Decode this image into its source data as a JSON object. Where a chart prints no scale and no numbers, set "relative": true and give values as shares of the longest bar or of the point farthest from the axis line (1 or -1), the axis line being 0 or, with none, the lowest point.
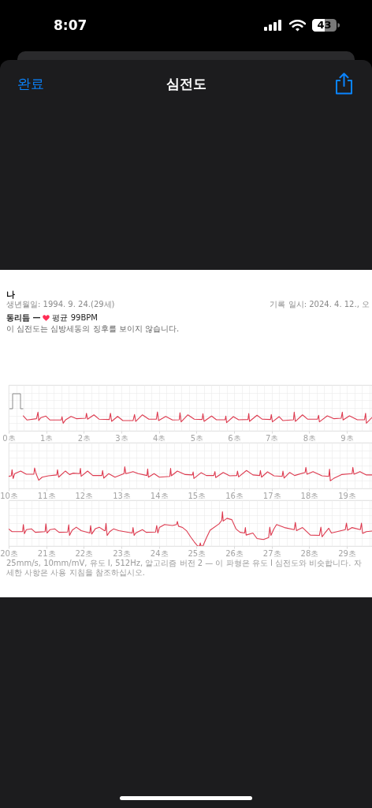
{
  "chart_data": [
    {
      "type": "other",
      "title": "심전도",
      "annotations": [
        "8:07",
        "43",
        "완료",
        "나",
        "생년월일: 1994. 9. 24.(29세)",
        "기록 일시: 2024. 4. 12., 오",
        "동리듬 —",
        "평균 99BPM",
        "이 심전도는 심방세동의 징후를 보이지 않습니다."
      ]
    },
    {
      "type": "line",
      "relative": true,
      "grid": true,
      "xlim": [
        0,
        9.67
      ],
      "xticks": [
        {
          "value": 0,
          "label": "0초"
        },
        {
          "value": 0.2,
          "label": null
        },
        {
          "value": 0.4,
          "label": null
        },
        {
          "value": 0.6,
          "label": null
        },
        {
          "value": 0.8,
          "label": null
        },
        {
          "value": 1,
          "label": "1초"
        },
        {
          "value": 1.2,
          "label": null
        },
        {
          "value": 1.4,
          "label": null
        },
        {
          "value": 1.6,
          "label": null
        },
        {
          "value": 1.8,
          "label": null
        },
        {
          "value": 2,
          "label": "2초"
        },
        {
          "value": 2.2,
          "label": null
        },
        {
          "value": 2.4,
          "label": null
        },
        {
          "value": 2.6,
          "label": null
        },
        {
          "value": 2.8,
          "label": null
        },
        {
          "value": 3,
          "label": "3초"
        },
        {
          "value": 3.2,
          "label": null
        },
        {
          "value": 3.4,
          "label": null
        },
        {
          "value": 3.6,
          "label": null
        },
        {
          "value": 3.8,
          "label": null
        },
        {
          "value": 4,
          "label": "4초"
        },
        {
          "value": 4.2,
          "label": null
        },
        {
          "value": 4.4,
          "label": null
        },
        {
          "value": 4.6,
          "label": null
        },
        {
          "value": 4.8,
          "label": null
        },
        {
          "value": 5,
          "label": "5초"
        },
        {
          "value": 5.2,
          "label": null
        },
        {
          "value": 5.4,
          "label": null
        },
        {
          "value": 5.6,
          "label": null
        },
        {
          "value": 5.8,
          "label": null
        },
        {
          "value": 6,
          "label": "6초"
        },
        {
          "value": 6.2,
          "label": null
        },
        {
          "value": 6.4,
          "label": null
        },
        {
          "value": 6.6,
          "label": null
        },
        {
          "value": 6.8,
          "label": null
        },
        {
          "value": 7,
          "label": "7초"
        },
        {
          "value": 7.2,
          "label": null
        },
        {
          "value": 7.4,
          "label": null
        },
        {
          "value": 7.6,
          "label": null
        },
        {
          "value": 7.8,
          "label": null
        },
        {
          "value": 8,
          "label": "8초"
        },
        {
          "value": 8.2,
          "label": null
        },
        {
          "value": 8.4,
          "label": null
        },
        {
          "value": 8.6,
          "label": null
        },
        {
          "value": 8.8,
          "label": null
        },
        {
          "value": 9,
          "label": "9초"
        },
        {
          "value": 9.2,
          "label": null
        },
        {
          "value": 9.4,
          "label": null
        },
        {
          "value": 9.6,
          "label": null
        }
      ],
      "x": [
        0.39,
        0.49,
        0.74,
        0.78,
        0.8,
        0.85,
        0.99,
        1.1,
        1.4,
        1.42,
        1.45,
        1.51,
        1.66,
        1.8,
        2.05,
        2.07,
        2.1,
        2.27,
        2.41,
        2.68,
        2.71,
        2.74,
        2.9,
        3.04,
        3.31,
        3.35,
        3.38,
        3.56,
        3.73,
        3.93,
        3.96,
        3.99,
        4.18,
        4.36,
        4.54,
        4.56,
        4.59,
        4.77,
        4.94,
        5.15,
        5.17,
        5.2,
        5.4,
        5.53,
        5.76,
        5.78,
        5.8,
        5.98,
        6.12,
        6.37,
        6.39,
        6.41,
        6.61,
        6.75,
        6.97,
        6.99,
        7.02,
        7.2,
        7.3,
        7.58,
        7.6,
        7.63,
        7.82,
        7.96,
        8.22,
        8.25,
        8.27,
        8.48,
        8.65,
        8.85,
        8.88,
        8.9,
        9.07,
        9.28,
        9.47,
        9.5,
        9.52,
        9.67
      ],
      "series": [
        {
          "color": "#dd3a4f",
          "values": [
            0.65,
            0.28,
            0.4,
            0.98,
            0.23,
            0.47,
            0.63,
            0.28,
            0.28,
            0.58,
            0,
            0.28,
            0.6,
            0.4,
            0.44,
            0.88,
            0.35,
            0.74,
            0.35,
            0.33,
            0.88,
            0.16,
            0.6,
            0.23,
            0.23,
            0.77,
            0.16,
            0.74,
            0.35,
            0.35,
            1,
            0.23,
            0.6,
            0.28,
            0.3,
            0.93,
            0.12,
            0.74,
            0.35,
            0.33,
            0.84,
            0.16,
            0.63,
            0.3,
            0.3,
            0.63,
            0.05,
            0.58,
            0.3,
            0.33,
            0.86,
            0.16,
            0.7,
            0.35,
            0.33,
            0.77,
            0.12,
            0.58,
            0.23,
            0.3,
            0.98,
            0.16,
            0.74,
            0.35,
            0.35,
            0.7,
            0.12,
            0.65,
            0.4,
            0.44,
            0.98,
            0.28,
            0.65,
            0.3,
            0.3,
            0.88,
            0,
            0.51
          ]
        }
      ]
    },
    {
      "type": "line",
      "relative": true,
      "grid": true,
      "xlim": [
        10,
        19.67
      ],
      "xticks": [
        {
          "value": 10,
          "label": "10초"
        },
        {
          "value": 10.2,
          "label": null
        },
        {
          "value": 10.4,
          "label": null
        },
        {
          "value": 10.6,
          "label": null
        },
        {
          "value": 10.8,
          "label": null
        },
        {
          "value": 11,
          "label": "11초"
        },
        {
          "value": 11.2,
          "label": null
        },
        {
          "value": 11.4,
          "label": null
        },
        {
          "value": 11.6,
          "label": null
        },
        {
          "value": 11.8,
          "label": null
        },
        {
          "value": 12,
          "label": "12초"
        },
        {
          "value": 12.2,
          "label": null
        },
        {
          "value": 12.4,
          "label": null
        },
        {
          "value": 12.6,
          "label": null
        },
        {
          "value": 12.8,
          "label": null
        },
        {
          "value": 13,
          "label": "13초"
        },
        {
          "value": 13.2,
          "label": null
        },
        {
          "value": 13.4,
          "label": null
        },
        {
          "value": 13.6,
          "label": null
        },
        {
          "value": 13.8,
          "label": null
        },
        {
          "value": 14,
          "label": "14초"
        },
        {
          "value": 14.2,
          "label": null
        },
        {
          "value": 14.4,
          "label": null
        },
        {
          "value": 14.6,
          "label": null
        },
        {
          "value": 14.8,
          "label": null
        },
        {
          "value": 15,
          "label": "15초"
        },
        {
          "value": 15.2,
          "label": null
        },
        {
          "value": 15.4,
          "label": null
        },
        {
          "value": 15.6,
          "label": null
        },
        {
          "value": 15.8,
          "label": null
        },
        {
          "value": 16,
          "label": "16초"
        },
        {
          "value": 16.2,
          "label": null
        },
        {
          "value": 16.4,
          "label": null
        },
        {
          "value": 16.6,
          "label": null
        },
        {
          "value": 16.8,
          "label": null
        },
        {
          "value": 17,
          "label": "17초"
        },
        {
          "value": 17.2,
          "label": null
        },
        {
          "value": 17.4,
          "label": null
        },
        {
          "value": 17.6,
          "label": null
        },
        {
          "value": 17.8,
          "label": null
        },
        {
          "value": 18,
          "label": "18초"
        },
        {
          "value": 18.2,
          "label": null
        },
        {
          "value": 18.4,
          "label": null
        },
        {
          "value": 18.6,
          "label": null
        },
        {
          "value": 18.8,
          "label": null
        },
        {
          "value": 19,
          "label": "19초"
        },
        {
          "value": 19.2,
          "label": null
        },
        {
          "value": 19.4,
          "label": null
        },
        {
          "value": 19.6,
          "label": null
        }
      ],
      "x": [
        10,
        10.07,
        10.09,
        10.12,
        10.16,
        10.32,
        10.47,
        10.67,
        10.69,
        10.73,
        10.8,
        10.89,
        11.06,
        11.28,
        11.3,
        11.33,
        11.51,
        11.62,
        11.72,
        11.89,
        11.91,
        11.93,
        12.1,
        12.24,
        12.48,
        12.5,
        12.53,
        12.66,
        12.83,
        13.07,
        13.09,
        13.12,
        13.31,
        13.45,
        13.68,
        13.7,
        13.72,
        13.87,
        14.01,
        14.29,
        14.31,
        14.33,
        14.49,
        14.7,
        14.89,
        14.91,
        14.93,
        15.12,
        15.26,
        15.46,
        15.49,
        15.51,
        15.71,
        15.88,
        16.07,
        16.09,
        16.12,
        16.33,
        16.5,
        16.68,
        16.7,
        16.73,
        16.89,
        17.06,
        17.28,
        17.3,
        17.33,
        17.48,
        17.61,
        17.89,
        17.91,
        17.94,
        18.1,
        18.34,
        18.52,
        18.54,
        18.56,
        18.65,
        18.86,
        19.14,
        19.16,
        19.19,
        19.35,
        19.52,
        19.67
      ],
      "series": [
        {
          "color": "#dd3a4f",
          "values": [
            0.32,
            0.36,
            0.79,
            0.17,
            0.51,
            0.7,
            0.47,
            0.47,
            0.92,
            0.51,
            0.04,
            0.26,
            0.36,
            0.42,
            0.79,
            0.26,
            0.7,
            0.45,
            0.55,
            0.51,
            0.89,
            0.32,
            0.7,
            0.38,
            0.38,
            0.74,
            0.19,
            0.51,
            0.26,
            0.51,
            1,
            0.51,
            0.66,
            0.51,
            0.38,
            0.85,
            0.26,
            0.51,
            0.26,
            0.32,
            0.89,
            0.36,
            0.7,
            0.45,
            0.42,
            0.64,
            0.17,
            0.58,
            0.38,
            0.38,
            0.66,
            0.23,
            0.6,
            0.36,
            0.38,
            0.7,
            0.28,
            0.74,
            0.42,
            0.38,
            0.74,
            0.26,
            0.64,
            0.36,
            0.32,
            0.7,
            0.19,
            0.6,
            0.38,
            0.6,
            0.96,
            0.47,
            0.66,
            0.36,
            0.32,
            0.83,
            0,
            0.17,
            0.45,
            0.51,
            0.96,
            0.47,
            0.66,
            0.42,
            0.42
          ]
        }
      ]
    },
    {
      "type": "line",
      "relative": true,
      "grid": true,
      "annotations": [
        "25mm/s, 10mm/mV, 유도 I, 512Hz, 알고리즘 버전 2 — 이 파형은 유도 I 심전도와 비슷합니다. 자세한 사항은 사용 지침을 참조하십시오."
      ],
      "xlim": [
        20,
        29.67
      ],
      "xticks": [
        {
          "value": 20,
          "label": "20초"
        },
        {
          "value": 20.2,
          "label": null
        },
        {
          "value": 20.4,
          "label": null
        },
        {
          "value": 20.6,
          "label": null
        },
        {
          "value": 20.8,
          "label": null
        },
        {
          "value": 21,
          "label": "21초"
        },
        {
          "value": 21.2,
          "label": null
        },
        {
          "value": 21.4,
          "label": null
        },
        {
          "value": 21.6,
          "label": null
        },
        {
          "value": 21.8,
          "label": null
        },
        {
          "value": 22,
          "label": "22초"
        },
        {
          "value": 22.2,
          "label": null
        },
        {
          "value": 22.4,
          "label": null
        },
        {
          "value": 22.6,
          "label": null
        },
        {
          "value": 22.8,
          "label": null
        },
        {
          "value": 23,
          "label": "23초"
        },
        {
          "value": 23.2,
          "label": null
        },
        {
          "value": 23.4,
          "label": null
        },
        {
          "value": 23.6,
          "label": null
        },
        {
          "value": 23.8,
          "label": null
        },
        {
          "value": 24,
          "label": "24초"
        },
        {
          "value": 24.2,
          "label": null
        },
        {
          "value": 24.4,
          "label": null
        },
        {
          "value": 24.6,
          "label": null
        },
        {
          "value": 24.8,
          "label": null
        },
        {
          "value": 25,
          "label": "25초"
        },
        {
          "value": 25.2,
          "label": null
        },
        {
          "value": 25.4,
          "label": null
        },
        {
          "value": 25.6,
          "label": null
        },
        {
          "value": 25.8,
          "label": null
        },
        {
          "value": 26,
          "label": "26초"
        },
        {
          "value": 26.2,
          "label": null
        },
        {
          "value": 26.4,
          "label": null
        },
        {
          "value": 26.6,
          "label": null
        },
        {
          "value": 26.8,
          "label": null
        },
        {
          "value": 27,
          "label": "27초"
        },
        {
          "value": 27.2,
          "label": null
        },
        {
          "value": 27.4,
          "label": null
        },
        {
          "value": 27.6,
          "label": null
        },
        {
          "value": 27.8,
          "label": null
        },
        {
          "value": 28,
          "label": "28초"
        },
        {
          "value": 28.2,
          "label": null
        },
        {
          "value": 28.4,
          "label": null
        },
        {
          "value": 28.6,
          "label": null
        },
        {
          "value": 28.8,
          "label": null
        },
        {
          "value": 29,
          "label": "29초"
        },
        {
          "value": 29.2,
          "label": null
        },
        {
          "value": 29.4,
          "label": null
        },
        {
          "value": 29.6,
          "label": null
        }
      ],
      "x": [
        20,
        20.09,
        20.37,
        20.39,
        20.42,
        20.47,
        20.61,
        20.71,
        20.97,
        20.99,
        21.02,
        21.1,
        21.23,
        21.34,
        21.57,
        21.6,
        21.62,
        21.69,
        21.8,
        21.93,
        22.16,
        22.18,
        22.21,
        22.31,
        22.41,
        22.55,
        22.57,
        22.59,
        22.62,
        22.69,
        22.79,
        22.93,
        23.29,
        23.31,
        23.34,
        23.38,
        23.56,
        23.66,
        23.91,
        23.94,
        23.97,
        24.01,
        24.15,
        24.36,
        24.47,
        24.49,
        24.52,
        24.63,
        24.74,
        24.84,
        24.94,
        25.03,
        25.08,
        25.1,
        25.12,
        25.17,
        25.26,
        25.36,
        25.6,
        25.67,
        25.69,
        25.71,
        25.81,
        25.94,
        26.05,
        26.16,
        26.28,
        26.3,
        26.32,
        26.5,
        26.61,
        26.78,
        26.92,
        26.95,
        26.98,
        27.06,
        27.13,
        27.34,
        27.6,
        27.63,
        27.66,
        27.82,
        28.03,
        28.27,
        28.31,
        28.34,
        28.41,
        28.52,
        28.59,
        28.96,
        28.99,
        29.02,
        29.14,
        29.36,
        29.39,
        29.42,
        29.52,
        29.67
      ],
      "series": [
        {
          "color": "#dd3a4f",
          "values": [
            0.5,
            0.42,
            0.42,
            0.63,
            0.36,
            0.48,
            0.5,
            0.4,
            0.42,
            0.65,
            0.38,
            0.48,
            0.5,
            0.4,
            0.41,
            0.62,
            0.31,
            0.46,
            0.55,
            0.45,
            0.38,
            0.6,
            0.35,
            0.51,
            0.55,
            0.45,
            0.45,
            0.66,
            0.31,
            0.42,
            0.5,
            0.45,
            0.38,
            0.54,
            0.31,
            0.38,
            0.48,
            0.4,
            0.41,
            0.6,
            0.38,
            0.54,
            0.63,
            0.6,
            0.63,
            0.72,
            0.58,
            0.54,
            0.44,
            0.27,
            0.12,
            0,
            0,
            0.09,
            0,
            0,
            0.23,
            0.46,
            0.65,
            0.75,
            1,
            0.73,
            0.81,
            0.77,
            0.5,
            0.4,
            0.38,
            0.54,
            0.32,
            0.38,
            0.22,
            0.19,
            0.25,
            0.55,
            0.31,
            0.5,
            0.63,
            0.54,
            0.48,
            0.69,
            0.45,
            0.54,
            0.32,
            0.31,
            0.55,
            0.27,
            0.37,
            0.52,
            0.38,
            0.48,
            0.67,
            0.46,
            0.54,
            0.48,
            0.67,
            0.37,
            0.42,
            0.44
          ]
        }
      ]
    }
  ]
}
